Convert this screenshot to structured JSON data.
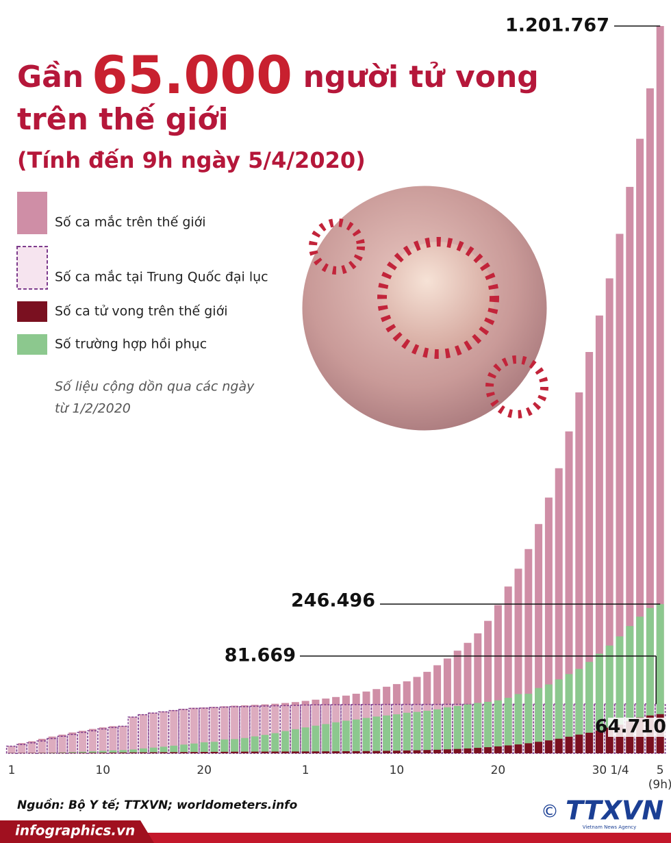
{
  "chart_data": {
    "type": "bar",
    "title": {
      "lead": "Gần",
      "number": "65.000",
      "rest": "người tử vong",
      "line2": "trên thế giới"
    },
    "subtitle": "(Tính đến 9h ngày 5/4/2020)",
    "note": [
      "Số liệu cộng dồn qua các ngày",
      "từ 1/2/2020"
    ],
    "categories": [
      "1",
      null,
      null,
      null,
      null,
      null,
      null,
      null,
      null,
      "10",
      null,
      null,
      null,
      null,
      null,
      null,
      null,
      null,
      null,
      "20",
      null,
      null,
      null,
      null,
      null,
      null,
      null,
      null,
      null,
      "1",
      null,
      null,
      null,
      null,
      null,
      null,
      null,
      null,
      "10",
      null,
      null,
      null,
      null,
      null,
      null,
      null,
      null,
      null,
      "20",
      null,
      null,
      null,
      null,
      null,
      null,
      null,
      null,
      null,
      "30",
      null,
      "1/4",
      null,
      null,
      null,
      "5"
    ],
    "x_note": "(9h)",
    "ylim": [
      0,
      1201767
    ],
    "series": [
      {
        "name": "Số ca mắc trên thế giới",
        "color": "#cf8ea6",
        "style": "solid",
        "values": [
          12038,
          16787,
          19881,
          23892,
          27636,
          30818,
          34392,
          37121,
          40151,
          42763,
          44803,
          45222,
          60370,
          64448,
          67100,
          69197,
          71329,
          73332,
          75184,
          75700,
          76677,
          77673,
          78651,
          79205,
          80087,
          80828,
          81820,
          83112,
          84615,
          86604,
          88585,
          90443,
          93016,
          95314,
          98425,
          102050,
          106099,
          109991,
          114381,
          118948,
          126214,
          134576,
          145483,
          156653,
          169593,
          182490,
          198234,
          218822,
          244933,
          275597,
          305036,
          337489,
          378830,
          422574,
          471035,
          531865,
          596366,
          663127,
          723390,
          784794,
          858371,
          935957,
          1015466,
          1098762,
          1201767
        ],
        "value_labels": [
          null,
          null,
          null,
          null,
          null,
          null,
          null,
          null,
          null,
          null,
          null,
          null,
          null,
          null,
          null,
          null,
          null,
          null,
          null,
          null,
          null,
          null,
          null,
          null,
          null,
          null,
          null,
          null,
          null,
          null,
          null,
          null,
          null,
          null,
          null,
          null,
          null,
          null,
          null,
          null,
          null,
          null,
          null,
          null,
          null,
          null,
          null,
          null,
          null,
          null,
          null,
          null,
          null,
          null,
          null,
          null,
          null,
          null,
          null,
          null,
          null,
          null,
          null,
          null,
          "1.201.767"
        ]
      },
      {
        "name": "Số ca mắc tại Trung Quốc đại lục",
        "color": "#7d3b8c",
        "style": "dashed",
        "values": [
          11791,
          14380,
          17205,
          20438,
          24324,
          28018,
          31161,
          34546,
          37198,
          40171,
          42638,
          44653,
          59804,
          63851,
          66492,
          68500,
          70548,
          72436,
          74185,
          74576,
          75465,
          76288,
          76936,
          77150,
          77658,
          78064,
          78497,
          78824,
          79251,
          79824,
          80026,
          80151,
          80270,
          80409,
          80552,
          80651,
          80695,
          80735,
          80754,
          80778,
          80793,
          80813,
          80824,
          80844,
          80860,
          80881,
          80894,
          80928,
          80967,
          81008,
          81054,
          81093,
          81171,
          81218,
          81285,
          81340,
          81394,
          81439,
          81470,
          81518,
          81554,
          81589,
          81620,
          81639,
          81669
        ],
        "value_labels": [
          null,
          null,
          null,
          null,
          null,
          null,
          null,
          null,
          null,
          null,
          null,
          null,
          null,
          null,
          null,
          null,
          null,
          null,
          null,
          null,
          null,
          null,
          null,
          null,
          null,
          null,
          null,
          null,
          null,
          null,
          null,
          null,
          null,
          null,
          null,
          null,
          null,
          null,
          null,
          null,
          null,
          null,
          null,
          null,
          null,
          null,
          null,
          null,
          null,
          null,
          null,
          null,
          null,
          null,
          null,
          null,
          null,
          null,
          null,
          null,
          null,
          null,
          null,
          null,
          "81.669"
        ]
      },
      {
        "name": "Số ca tử vong trên thế giới",
        "color": "#7a1020",
        "style": "solid",
        "values": [
          259,
          362,
          426,
          492,
          565,
          638,
          724,
          813,
          910,
          1018,
          1115,
          1261,
          1383,
          1526,
          1669,
          1775,
          1873,
          2009,
          2126,
          2247,
          2360,
          2460,
          2618,
          2699,
          2763,
          2800,
          2858,
          2923,
          2977,
          3050,
          3117,
          3202,
          3285,
          3387,
          3494,
          3599,
          3827,
          4025,
          4296,
          4628,
          4981,
          5428,
          5833,
          6520,
          7162,
          7979,
          8951,
          10030,
          11386,
          13011,
          14640,
          16558,
          19000,
          21300,
          24089,
          27389,
          30900,
          34000,
          37600,
          42300,
          47245,
          53190,
          59206,
          62500,
          64710
        ],
        "value_labels": [
          null,
          null,
          null,
          null,
          null,
          null,
          null,
          null,
          null,
          null,
          null,
          null,
          null,
          null,
          null,
          null,
          null,
          null,
          null,
          null,
          null,
          null,
          null,
          null,
          null,
          null,
          null,
          null,
          null,
          null,
          null,
          null,
          null,
          null,
          null,
          null,
          null,
          null,
          null,
          null,
          null,
          null,
          null,
          null,
          null,
          null,
          null,
          null,
          null,
          null,
          null,
          null,
          null,
          null,
          null,
          null,
          null,
          null,
          null,
          null,
          null,
          null,
          null,
          null,
          "64.710"
        ]
      },
      {
        "name": "Số trường hợp hồi phục",
        "color": "#8cc88e",
        "style": "solid",
        "values": [
          284,
          472,
          623,
          852,
          1124,
          1487,
          2011,
          2616,
          3244,
          3946,
          4683,
          5150,
          6295,
          8058,
          9395,
          10865,
          12583,
          14352,
          16121,
          18177,
          18890,
          22886,
          23394,
          25227,
          27905,
          30384,
          33277,
          36711,
          39782,
          42716,
          45602,
          48228,
          51170,
          53796,
          55865,
          58358,
          60694,
          62494,
          64404,
          67003,
          68324,
          70251,
          72624,
          76034,
          78088,
          80840,
          83312,
          84975,
          87420,
          91692,
          97899,
          98351,
          107890,
          113787,
          122150,
          130915,
          139415,
          151004,
          164566,
          178034,
          193177,
          210263,
          225796,
          240135,
          246496
        ],
        "value_labels": [
          null,
          null,
          null,
          null,
          null,
          null,
          null,
          null,
          null,
          null,
          null,
          null,
          null,
          null,
          null,
          null,
          null,
          null,
          null,
          null,
          null,
          null,
          null,
          null,
          null,
          null,
          null,
          null,
          null,
          null,
          null,
          null,
          null,
          null,
          null,
          null,
          null,
          null,
          null,
          null,
          null,
          null,
          null,
          null,
          null,
          null,
          null,
          null,
          null,
          null,
          null,
          null,
          null,
          null,
          null,
          null,
          null,
          null,
          null,
          null,
          null,
          null,
          null,
          null,
          "246.496"
        ]
      }
    ],
    "source": "Nguồn: Bộ Y tế; TTXVN; worldometers.info",
    "site": "infographics.vn",
    "logo": {
      "copyright": "©",
      "name": "TTXVN",
      "tagline": "Vietnam News Agency"
    }
  }
}
